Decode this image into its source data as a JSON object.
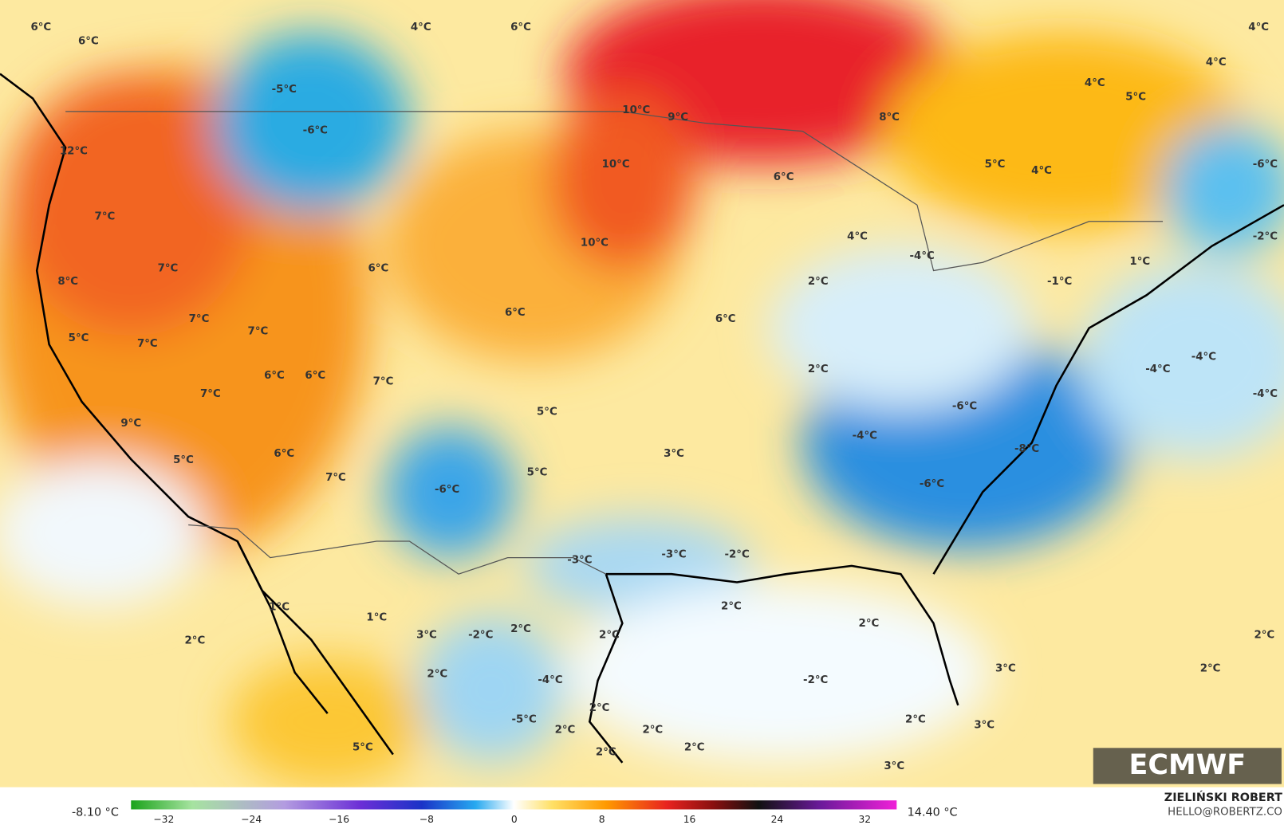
{
  "map": {
    "labels": [
      "6°C",
      "6°C",
      "4°C",
      "6°C",
      "4°C",
      "4°C",
      "4°C",
      "5°C",
      "-5°C",
      "-6°C",
      "10°C",
      "9°C",
      "8°C",
      "12°C",
      "10°C",
      "5°C",
      "4°C",
      "-6°C",
      "6°C",
      "7°C",
      "10°C",
      "4°C",
      "-2°C",
      "7°C",
      "6°C",
      "-4°C",
      "1°C",
      "8°C",
      "2°C",
      "-1°C",
      "6°C",
      "6°C",
      "7°C",
      "7°C",
      "5°C",
      "7°C",
      "-4°C",
      "-4°C",
      "2°C",
      "6°C",
      "6°C",
      "7°C",
      "7°C",
      "-4°C",
      "5°C",
      "-6°C",
      "9°C",
      "-4°C",
      "-8°C",
      "6°C",
      "3°C",
      "5°C",
      "7°C",
      "5°C",
      "-6°C",
      "-6°C",
      "-3°C",
      "-3°C",
      "-2°C",
      "2°C",
      "2°C",
      "1°C",
      "1°C",
      "3°C",
      "-2°C",
      "2°C",
      "2°C",
      "2°C",
      "2°C",
      "-2°C",
      "3°C",
      "2°C",
      "2°C",
      "-4°C",
      "2°C",
      "-5°C",
      "2°C",
      "2°C",
      "2°C",
      "3°C",
      "5°C",
      "2°C",
      "2°C",
      "3°C"
    ],
    "logo": "ECMWF",
    "author": "ZIELIŃSKI ROBERT",
    "contact": "HELLO@ROBERTZ.CO",
    "colorbar": {
      "min_label": "-8.10 °C",
      "max_label": "14.40 °C",
      "ticks": [
        "−32",
        "−24",
        "−16",
        "−8",
        "0",
        "8",
        "16",
        "24",
        "32"
      ]
    }
  }
}
